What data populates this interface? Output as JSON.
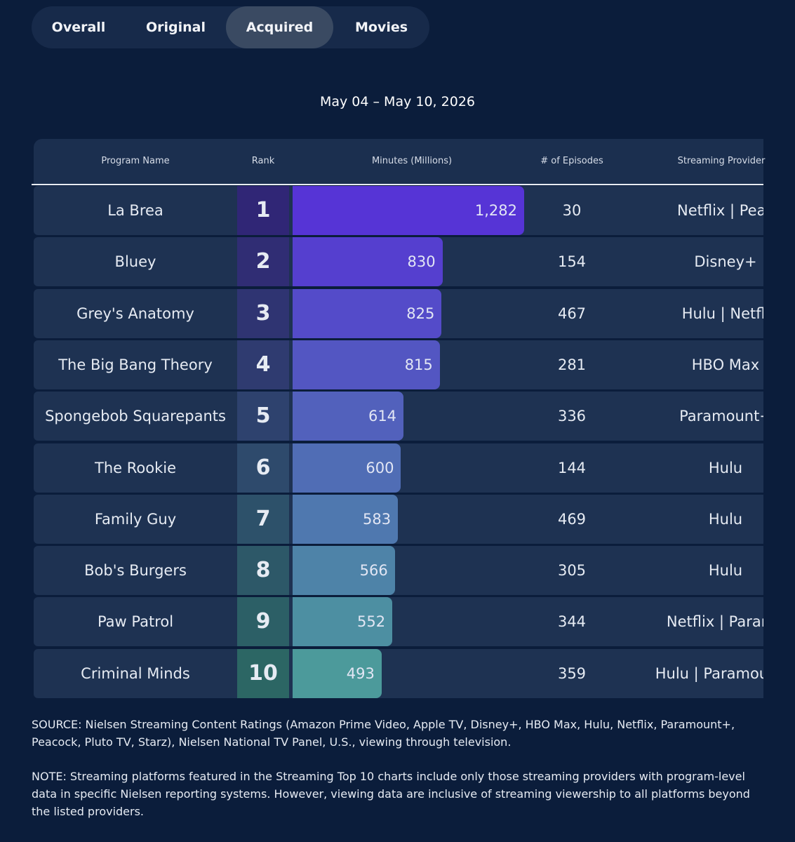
{
  "tabs": [
    "Overall",
    "Original",
    "Acquired",
    "Movies"
  ],
  "active_tab": 2,
  "date_range": "May 04 – May 10, 2026",
  "table": {
    "headers": [
      "Program Name",
      "Rank",
      "Minutes (Millions)",
      "# of Episodes",
      "Streaming Provider"
    ],
    "rows": [
      {
        "program": "La Brea",
        "rank": 1,
        "minutes": {
          "value": 1282,
          "label": "1,282"
        },
        "episodes": 30,
        "provider": "Netflix | Peac"
      },
      {
        "program": "Bluey",
        "rank": 2,
        "minutes": 830,
        "episodes": 154,
        "provider": "Disney+"
      },
      {
        "program": "Grey's Anatomy",
        "rank": 3,
        "minutes": 825,
        "episodes": 467,
        "provider": "Hulu | Netfli"
      },
      {
        "program": "The Big Bang Theory",
        "rank": 4,
        "minutes": 815,
        "episodes": 281,
        "provider": "HBO Max"
      },
      {
        "program": "Spongebob Squarepants",
        "rank": 5,
        "minutes": 614,
        "episodes": 336,
        "provider": "Paramount+"
      },
      {
        "program": "The Rookie",
        "rank": 6,
        "minutes": 600,
        "episodes": 144,
        "provider": "Hulu"
      },
      {
        "program": "Family Guy",
        "rank": 7,
        "minutes": 583,
        "episodes": 469,
        "provider": "Hulu"
      },
      {
        "program": "Bob's Burgers",
        "rank": 8,
        "minutes": 566,
        "episodes": 305,
        "provider": "Hulu"
      },
      {
        "program": "Paw Patrol",
        "rank": 9,
        "minutes": 552,
        "episodes": 344,
        "provider": "Netflix | Paramo"
      },
      {
        "program": "Criminal Minds",
        "rank": 10,
        "minutes": 493,
        "episodes": 359,
        "provider": "Hulu | Paramount+"
      }
    ]
  },
  "notes": [
    "SOURCE: Nielsen Streaming Content Ratings (Amazon Prime Video, Apple TV, Disney+, HBO Max, Hulu, Netflix, Paramount+, Peacock, Pluto TV, Starz), Nielsen National TV Panel, U.S., viewing through television.",
    "NOTE: Streaming platforms featured in the Streaming Top 10 charts include only those streaming providers with program-level data in specific Nielsen reporting systems. However, viewing data are inclusive of streaming viewership to all platforms beyond the listed providers."
  ]
}
